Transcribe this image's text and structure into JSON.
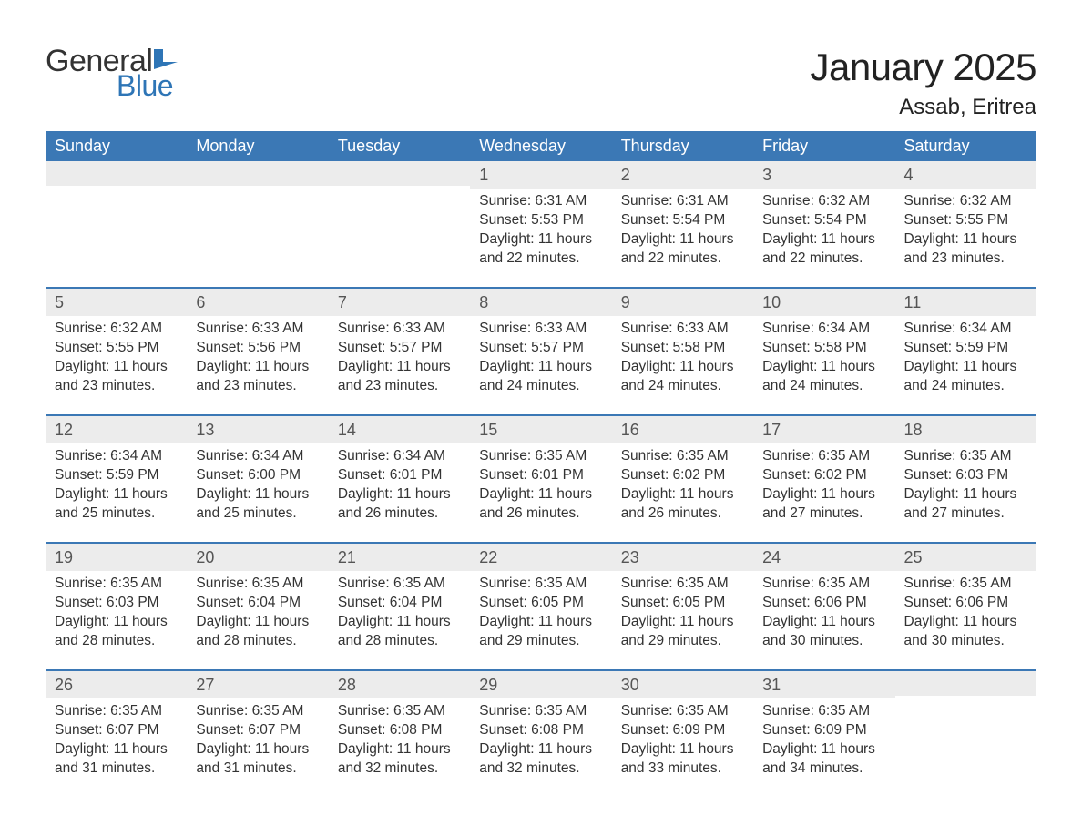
{
  "logo": {
    "text1": "General",
    "text2": "Blue",
    "flag_color": "#2e75b6"
  },
  "title": "January 2025",
  "location": "Assab, Eritrea",
  "styling": {
    "header_bg": "#3b78b5",
    "header_text": "#ffffff",
    "daynum_bg": "#ececec",
    "week_border": "#3b78b5",
    "body_text": "#333333",
    "title_fontsize": 42,
    "location_fontsize": 24,
    "weekday_fontsize": 18,
    "cell_fontsize": 15.5
  },
  "weekdays": [
    "Sunday",
    "Monday",
    "Tuesday",
    "Wednesday",
    "Thursday",
    "Friday",
    "Saturday"
  ],
  "weeks": [
    [
      null,
      null,
      null,
      {
        "d": "1",
        "sr": "Sunrise: 6:31 AM",
        "ss": "Sunset: 5:53 PM",
        "dl1": "Daylight: 11 hours",
        "dl2": "and 22 minutes."
      },
      {
        "d": "2",
        "sr": "Sunrise: 6:31 AM",
        "ss": "Sunset: 5:54 PM",
        "dl1": "Daylight: 11 hours",
        "dl2": "and 22 minutes."
      },
      {
        "d": "3",
        "sr": "Sunrise: 6:32 AM",
        "ss": "Sunset: 5:54 PM",
        "dl1": "Daylight: 11 hours",
        "dl2": "and 22 minutes."
      },
      {
        "d": "4",
        "sr": "Sunrise: 6:32 AM",
        "ss": "Sunset: 5:55 PM",
        "dl1": "Daylight: 11 hours",
        "dl2": "and 23 minutes."
      }
    ],
    [
      {
        "d": "5",
        "sr": "Sunrise: 6:32 AM",
        "ss": "Sunset: 5:55 PM",
        "dl1": "Daylight: 11 hours",
        "dl2": "and 23 minutes."
      },
      {
        "d": "6",
        "sr": "Sunrise: 6:33 AM",
        "ss": "Sunset: 5:56 PM",
        "dl1": "Daylight: 11 hours",
        "dl2": "and 23 minutes."
      },
      {
        "d": "7",
        "sr": "Sunrise: 6:33 AM",
        "ss": "Sunset: 5:57 PM",
        "dl1": "Daylight: 11 hours",
        "dl2": "and 23 minutes."
      },
      {
        "d": "8",
        "sr": "Sunrise: 6:33 AM",
        "ss": "Sunset: 5:57 PM",
        "dl1": "Daylight: 11 hours",
        "dl2": "and 24 minutes."
      },
      {
        "d": "9",
        "sr": "Sunrise: 6:33 AM",
        "ss": "Sunset: 5:58 PM",
        "dl1": "Daylight: 11 hours",
        "dl2": "and 24 minutes."
      },
      {
        "d": "10",
        "sr": "Sunrise: 6:34 AM",
        "ss": "Sunset: 5:58 PM",
        "dl1": "Daylight: 11 hours",
        "dl2": "and 24 minutes."
      },
      {
        "d": "11",
        "sr": "Sunrise: 6:34 AM",
        "ss": "Sunset: 5:59 PM",
        "dl1": "Daylight: 11 hours",
        "dl2": "and 24 minutes."
      }
    ],
    [
      {
        "d": "12",
        "sr": "Sunrise: 6:34 AM",
        "ss": "Sunset: 5:59 PM",
        "dl1": "Daylight: 11 hours",
        "dl2": "and 25 minutes."
      },
      {
        "d": "13",
        "sr": "Sunrise: 6:34 AM",
        "ss": "Sunset: 6:00 PM",
        "dl1": "Daylight: 11 hours",
        "dl2": "and 25 minutes."
      },
      {
        "d": "14",
        "sr": "Sunrise: 6:34 AM",
        "ss": "Sunset: 6:01 PM",
        "dl1": "Daylight: 11 hours",
        "dl2": "and 26 minutes."
      },
      {
        "d": "15",
        "sr": "Sunrise: 6:35 AM",
        "ss": "Sunset: 6:01 PM",
        "dl1": "Daylight: 11 hours",
        "dl2": "and 26 minutes."
      },
      {
        "d": "16",
        "sr": "Sunrise: 6:35 AM",
        "ss": "Sunset: 6:02 PM",
        "dl1": "Daylight: 11 hours",
        "dl2": "and 26 minutes."
      },
      {
        "d": "17",
        "sr": "Sunrise: 6:35 AM",
        "ss": "Sunset: 6:02 PM",
        "dl1": "Daylight: 11 hours",
        "dl2": "and 27 minutes."
      },
      {
        "d": "18",
        "sr": "Sunrise: 6:35 AM",
        "ss": "Sunset: 6:03 PM",
        "dl1": "Daylight: 11 hours",
        "dl2": "and 27 minutes."
      }
    ],
    [
      {
        "d": "19",
        "sr": "Sunrise: 6:35 AM",
        "ss": "Sunset: 6:03 PM",
        "dl1": "Daylight: 11 hours",
        "dl2": "and 28 minutes."
      },
      {
        "d": "20",
        "sr": "Sunrise: 6:35 AM",
        "ss": "Sunset: 6:04 PM",
        "dl1": "Daylight: 11 hours",
        "dl2": "and 28 minutes."
      },
      {
        "d": "21",
        "sr": "Sunrise: 6:35 AM",
        "ss": "Sunset: 6:04 PM",
        "dl1": "Daylight: 11 hours",
        "dl2": "and 28 minutes."
      },
      {
        "d": "22",
        "sr": "Sunrise: 6:35 AM",
        "ss": "Sunset: 6:05 PM",
        "dl1": "Daylight: 11 hours",
        "dl2": "and 29 minutes."
      },
      {
        "d": "23",
        "sr": "Sunrise: 6:35 AM",
        "ss": "Sunset: 6:05 PM",
        "dl1": "Daylight: 11 hours",
        "dl2": "and 29 minutes."
      },
      {
        "d": "24",
        "sr": "Sunrise: 6:35 AM",
        "ss": "Sunset: 6:06 PM",
        "dl1": "Daylight: 11 hours",
        "dl2": "and 30 minutes."
      },
      {
        "d": "25",
        "sr": "Sunrise: 6:35 AM",
        "ss": "Sunset: 6:06 PM",
        "dl1": "Daylight: 11 hours",
        "dl2": "and 30 minutes."
      }
    ],
    [
      {
        "d": "26",
        "sr": "Sunrise: 6:35 AM",
        "ss": "Sunset: 6:07 PM",
        "dl1": "Daylight: 11 hours",
        "dl2": "and 31 minutes."
      },
      {
        "d": "27",
        "sr": "Sunrise: 6:35 AM",
        "ss": "Sunset: 6:07 PM",
        "dl1": "Daylight: 11 hours",
        "dl2": "and 31 minutes."
      },
      {
        "d": "28",
        "sr": "Sunrise: 6:35 AM",
        "ss": "Sunset: 6:08 PM",
        "dl1": "Daylight: 11 hours",
        "dl2": "and 32 minutes."
      },
      {
        "d": "29",
        "sr": "Sunrise: 6:35 AM",
        "ss": "Sunset: 6:08 PM",
        "dl1": "Daylight: 11 hours",
        "dl2": "and 32 minutes."
      },
      {
        "d": "30",
        "sr": "Sunrise: 6:35 AM",
        "ss": "Sunset: 6:09 PM",
        "dl1": "Daylight: 11 hours",
        "dl2": "and 33 minutes."
      },
      {
        "d": "31",
        "sr": "Sunrise: 6:35 AM",
        "ss": "Sunset: 6:09 PM",
        "dl1": "Daylight: 11 hours",
        "dl2": "and 34 minutes."
      },
      null
    ]
  ]
}
